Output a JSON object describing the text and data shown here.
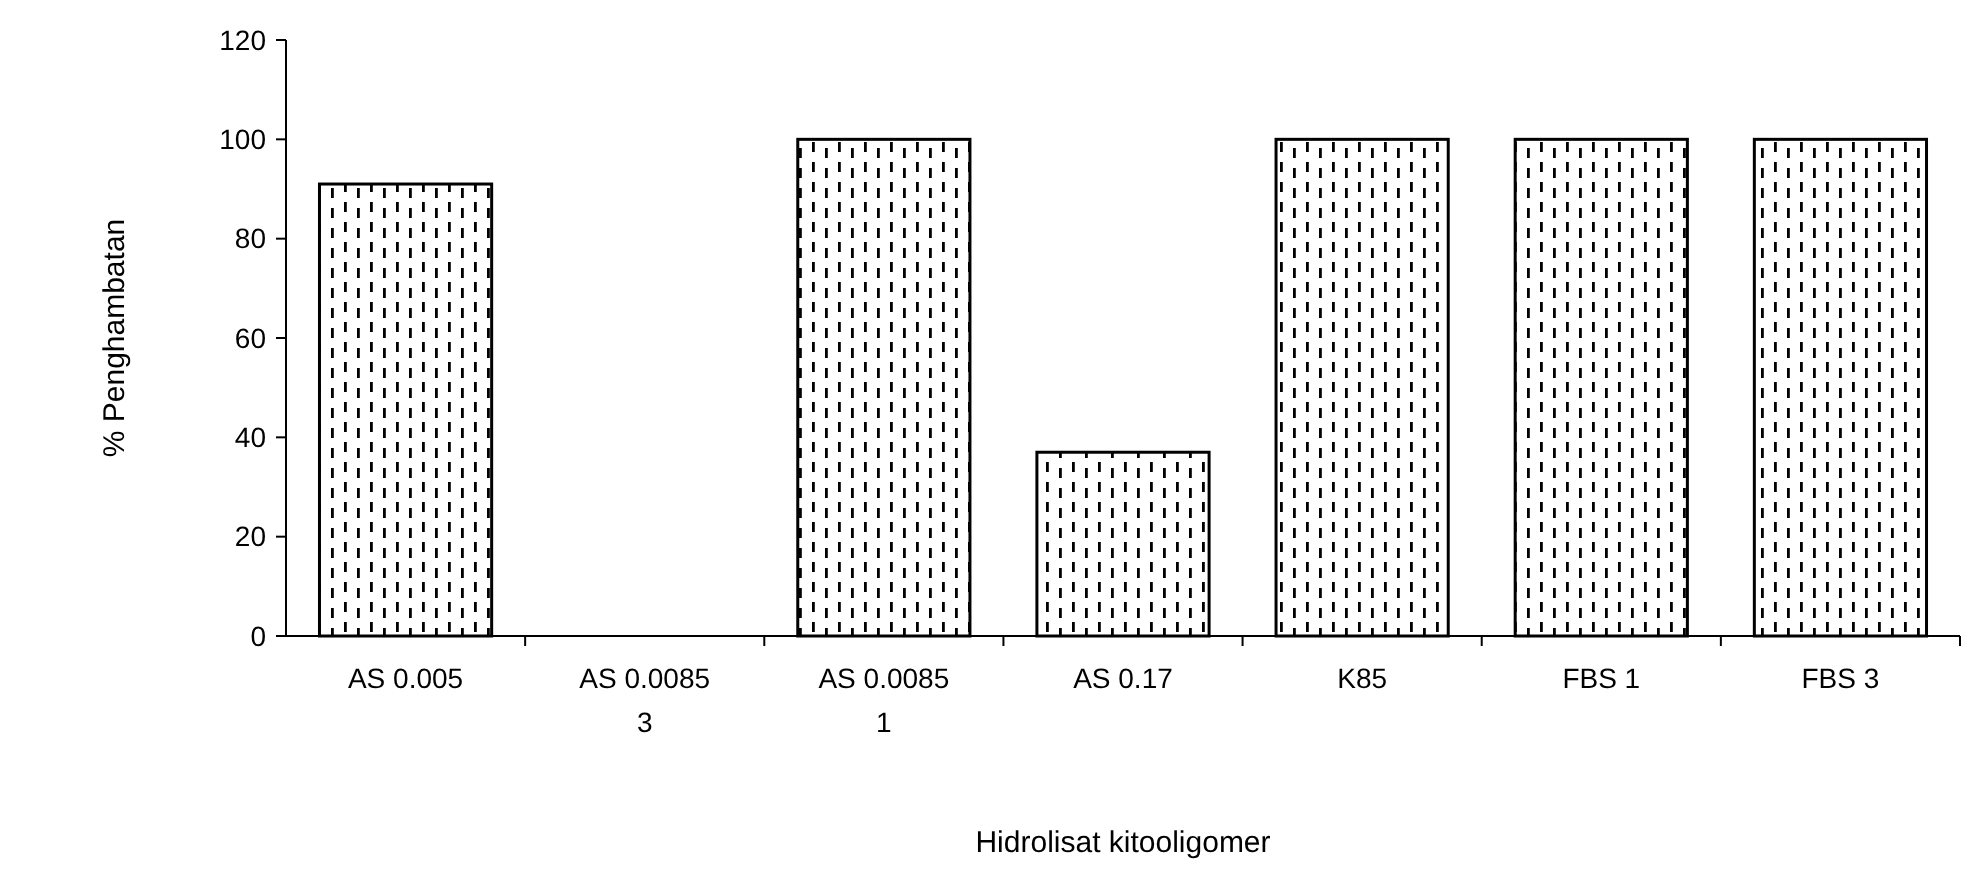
{
  "chart_data": {
    "type": "bar",
    "xlabel": "Hidrolisat kitooligomer",
    "ylabel": "% Penghambatan",
    "categories": [
      "AS 0.005",
      "AS 0.0085 3",
      "AS 0.0085 1",
      "AS 0.17",
      "K85",
      "FBS 1",
      "FBS 3"
    ],
    "values": [
      91,
      0,
      100,
      37,
      100,
      100,
      100
    ],
    "color": "#000000",
    "ylim": [
      0,
      120
    ],
    "yticks": [
      0,
      20,
      40,
      60,
      80,
      100,
      120
    ],
    "grid": false
  }
}
